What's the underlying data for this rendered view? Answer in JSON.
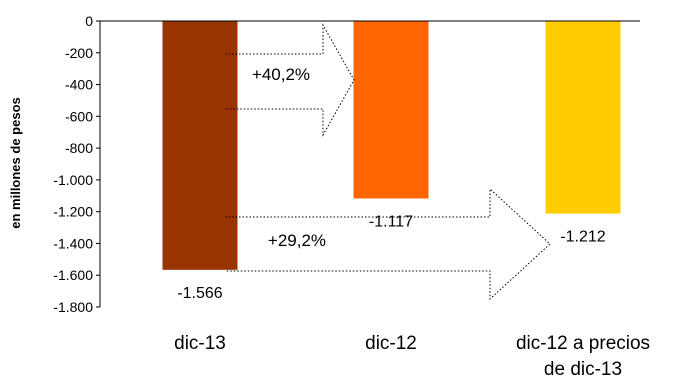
{
  "chart_data": {
    "type": "bar",
    "ylabel": "en millones de pesos",
    "ylim": [
      -1800,
      0
    ],
    "yticks": [
      0,
      -200,
      -400,
      -600,
      -800,
      -1000,
      -1200,
      -1400,
      -1600,
      -1800
    ],
    "ytick_labels": [
      "0",
      "-200",
      "-400",
      "-600",
      "-800",
      "-1.000",
      "-1.200",
      "-1.400",
      "-1.600",
      "-1.800"
    ],
    "categories": [
      {
        "lines": [
          "dic-13"
        ]
      },
      {
        "lines": [
          "dic-12"
        ]
      },
      {
        "lines": [
          "dic-12 a precios",
          "de dic-13"
        ]
      }
    ],
    "values": [
      -1566,
      -1117,
      -1212
    ],
    "value_labels": [
      "-1.566",
      "-1.117",
      "-1.212"
    ],
    "colors": [
      "#993300",
      "#ff6600",
      "#ffcc00"
    ],
    "grid": false,
    "annotations": [
      {
        "label": "+40,2%",
        "from": "dic-13",
        "to": "dic-12"
      },
      {
        "label": "+29,2%",
        "from": "dic-13",
        "to": "dic-12 a precios de dic-13"
      }
    ]
  }
}
